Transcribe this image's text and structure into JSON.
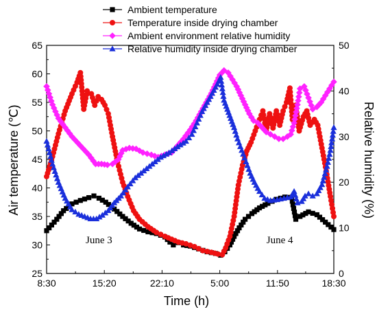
{
  "chart_data": {
    "type": "line",
    "xlabel": "Time (h)",
    "ylabel_left": "Air temperature (℃)",
    "ylabel_right": "Relative humidity (%)",
    "x_ticks": [
      "8:30",
      "15:20",
      "22:10",
      "5:00",
      "11:50",
      "18:30"
    ],
    "x_tick_hours": [
      0,
      6.833,
      13.667,
      20.5,
      27.333,
      34
    ],
    "xlim": [
      0,
      34
    ],
    "ylim_left": [
      25,
      65
    ],
    "ylim_right": [
      0,
      50
    ],
    "y_ticks_left": [
      25,
      30,
      35,
      40,
      45,
      50,
      55,
      60,
      65
    ],
    "y_ticks_right": [
      0,
      10,
      20,
      30,
      40,
      50
    ],
    "annotations": [
      {
        "text": "June 3",
        "x": 6.2,
        "y": 30.3
      },
      {
        "text": "June 4",
        "x": 27.6,
        "y": 30.3
      }
    ],
    "legend_position": "top",
    "series": [
      {
        "name": "Ambient temperature",
        "axis": "left",
        "color": "#000000",
        "marker": "square",
        "points": [
          [
            0,
            32.5
          ],
          [
            0.6,
            33.5
          ],
          [
            1.2,
            34.5
          ],
          [
            2,
            36
          ],
          [
            3,
            37.2
          ],
          [
            4,
            37.8
          ],
          [
            5,
            38.3
          ],
          [
            5.6,
            38.6
          ],
          [
            6.2,
            38.2
          ],
          [
            7,
            37.5
          ],
          [
            8,
            36.3
          ],
          [
            9,
            35
          ],
          [
            10,
            33.8
          ],
          [
            11,
            32.8
          ],
          [
            12,
            32.3
          ],
          [
            13,
            32
          ],
          [
            14,
            31.4
          ],
          [
            14.6,
            30.5
          ],
          [
            15,
            30
          ],
          [
            15.6,
            30.4
          ],
          [
            16.2,
            30
          ],
          [
            17,
            29.8
          ],
          [
            18,
            29.3
          ],
          [
            19,
            28.8
          ],
          [
            20,
            28.5
          ],
          [
            20.6,
            28.2
          ],
          [
            21.1,
            28.8
          ],
          [
            21.7,
            30
          ],
          [
            22.2,
            31.5
          ],
          [
            22.8,
            33
          ],
          [
            23.5,
            34.5
          ],
          [
            24.3,
            35.5
          ],
          [
            25.2,
            36.5
          ],
          [
            26.2,
            37.3
          ],
          [
            27.2,
            38
          ],
          [
            28.2,
            38.4
          ],
          [
            29,
            38.3
          ],
          [
            29.5,
            34.5
          ],
          [
            30,
            35
          ],
          [
            31,
            35.8
          ],
          [
            32,
            35.3
          ],
          [
            33,
            34
          ],
          [
            34,
            32.7
          ]
        ]
      },
      {
        "name": "Temperature inside drying chamber",
        "axis": "left",
        "color": "#ee1111",
        "marker": "circle",
        "points": [
          [
            0,
            42
          ],
          [
            0.7,
            45.5
          ],
          [
            1.4,
            49.5
          ],
          [
            2.2,
            53.5
          ],
          [
            3,
            56.5
          ],
          [
            3.6,
            58.5
          ],
          [
            4,
            60.2
          ],
          [
            4.4,
            53.8
          ],
          [
            4.8,
            57
          ],
          [
            5.3,
            56.5
          ],
          [
            5.7,
            54.5
          ],
          [
            6.1,
            56
          ],
          [
            6.5,
            55.5
          ],
          [
            6.9,
            54.5
          ],
          [
            7.3,
            53
          ],
          [
            7.8,
            49
          ],
          [
            8.4,
            44.5
          ],
          [
            9,
            41
          ],
          [
            9.6,
            38.5
          ],
          [
            10.3,
            36
          ],
          [
            11,
            34.5
          ],
          [
            12,
            33.2
          ],
          [
            13,
            32.2
          ],
          [
            14,
            31.5
          ],
          [
            14.8,
            31
          ],
          [
            15.6,
            30.5
          ],
          [
            16.5,
            30.2
          ],
          [
            17.5,
            29.7
          ],
          [
            18.5,
            29
          ],
          [
            19.5,
            28.7
          ],
          [
            20.3,
            28.4
          ],
          [
            20.8,
            28.3
          ],
          [
            21.2,
            29.5
          ],
          [
            21.7,
            31.5
          ],
          [
            22.2,
            35
          ],
          [
            22.7,
            40.5
          ],
          [
            23.2,
            44
          ],
          [
            23.7,
            46.5
          ],
          [
            24.2,
            48
          ],
          [
            24.7,
            50
          ],
          [
            25.2,
            52
          ],
          [
            25.6,
            53.5
          ],
          [
            26,
            50
          ],
          [
            26.4,
            53
          ],
          [
            26.8,
            50.5
          ],
          [
            27.2,
            53.5
          ],
          [
            27.6,
            51
          ],
          [
            28,
            53.5
          ],
          [
            28.4,
            55
          ],
          [
            28.8,
            57.5
          ],
          [
            29.1,
            52
          ],
          [
            29.5,
            54.5
          ],
          [
            29.9,
            50
          ],
          [
            30.4,
            52.5
          ],
          [
            30.8,
            53.5
          ],
          [
            31.2,
            51
          ],
          [
            31.7,
            52
          ],
          [
            32.1,
            51
          ],
          [
            32.6,
            47
          ],
          [
            33.1,
            43
          ],
          [
            33.6,
            38.5
          ],
          [
            34,
            35
          ]
        ]
      },
      {
        "name": "Ambient environment relative humidity",
        "axis": "right",
        "color": "#ff22ff",
        "marker": "diamond",
        "points": [
          [
            0,
            41
          ],
          [
            0.7,
            37
          ],
          [
            1.4,
            34
          ],
          [
            2.2,
            32
          ],
          [
            3,
            30
          ],
          [
            4,
            28
          ],
          [
            5,
            26
          ],
          [
            5.8,
            24
          ],
          [
            6.5,
            24
          ],
          [
            7.2,
            23.8
          ],
          [
            7.8,
            24
          ],
          [
            8.5,
            25
          ],
          [
            9,
            27
          ],
          [
            9.8,
            27.5
          ],
          [
            10.6,
            27.3
          ],
          [
            11.4,
            26.5
          ],
          [
            12.4,
            26
          ],
          [
            13.2,
            25.5
          ],
          [
            14,
            26
          ],
          [
            14.8,
            26.5
          ],
          [
            15.5,
            28
          ],
          [
            16.2,
            29.5
          ],
          [
            17,
            31.5
          ],
          [
            17.7,
            33.5
          ],
          [
            18.3,
            35.5
          ],
          [
            18.9,
            37.5
          ],
          [
            19.5,
            39.5
          ],
          [
            20,
            41.5
          ],
          [
            20.5,
            43.5
          ],
          [
            21,
            44.5
          ],
          [
            21.5,
            44
          ],
          [
            22,
            42.5
          ],
          [
            22.5,
            41
          ],
          [
            23,
            39
          ],
          [
            23.5,
            37
          ],
          [
            24,
            35
          ],
          [
            24.5,
            33.5
          ],
          [
            25,
            33
          ],
          [
            25.5,
            32
          ],
          [
            26,
            31
          ],
          [
            26.5,
            30.5
          ],
          [
            27,
            30
          ],
          [
            27.5,
            29.5
          ],
          [
            28,
            29.5
          ],
          [
            28.5,
            30
          ],
          [
            28.9,
            30.5
          ],
          [
            29.3,
            33
          ],
          [
            29.7,
            37
          ],
          [
            30,
            40.5
          ],
          [
            30.5,
            41
          ],
          [
            31,
            38.5
          ],
          [
            31.5,
            36
          ],
          [
            32,
            36.5
          ],
          [
            32.5,
            37.5
          ],
          [
            33,
            39
          ],
          [
            33.5,
            40.5
          ],
          [
            34,
            42
          ]
        ]
      },
      {
        "name": "Relative humidity inside drying chamber",
        "axis": "right",
        "color": "#1a2fdb",
        "marker": "triangle",
        "points": [
          [
            0,
            29
          ],
          [
            0.7,
            24
          ],
          [
            1.4,
            20
          ],
          [
            2.2,
            16.5
          ],
          [
            3,
            14
          ],
          [
            3.8,
            13
          ],
          [
            4.5,
            12.5
          ],
          [
            5.2,
            12
          ],
          [
            5.9,
            12
          ],
          [
            6.6,
            12.8
          ],
          [
            7.3,
            13.8
          ],
          [
            8,
            15.5
          ],
          [
            8.8,
            17
          ],
          [
            9.6,
            19
          ],
          [
            10.5,
            21
          ],
          [
            11.5,
            22.5
          ],
          [
            12.5,
            24
          ],
          [
            13.5,
            25.5
          ],
          [
            14.5,
            26.5
          ],
          [
            15.5,
            27.8
          ],
          [
            16.5,
            29
          ],
          [
            17.2,
            30.5
          ],
          [
            17.8,
            33
          ],
          [
            18.4,
            35.5
          ],
          [
            19,
            37.5
          ],
          [
            19.6,
            39.5
          ],
          [
            20.2,
            41.5
          ],
          [
            20.6,
            43
          ],
          [
            21,
            38
          ],
          [
            21.4,
            36
          ],
          [
            21.8,
            34
          ],
          [
            22.2,
            32
          ],
          [
            22.6,
            29.5
          ],
          [
            23.1,
            27
          ],
          [
            23.6,
            24.5
          ],
          [
            24.1,
            22
          ],
          [
            24.6,
            20
          ],
          [
            25.2,
            18
          ],
          [
            25.8,
            16.5
          ],
          [
            26.5,
            16
          ],
          [
            27.3,
            16.2
          ],
          [
            28.1,
            16.5
          ],
          [
            28.9,
            16.8
          ],
          [
            29.3,
            18
          ],
          [
            29.7,
            15.5
          ],
          [
            30.2,
            15.8
          ],
          [
            30.6,
            17
          ],
          [
            31,
            17.5
          ],
          [
            31.5,
            17
          ],
          [
            32,
            17.5
          ],
          [
            32.6,
            19.5
          ],
          [
            33.2,
            23.5
          ],
          [
            33.6,
            27
          ],
          [
            34,
            32
          ]
        ]
      }
    ]
  }
}
